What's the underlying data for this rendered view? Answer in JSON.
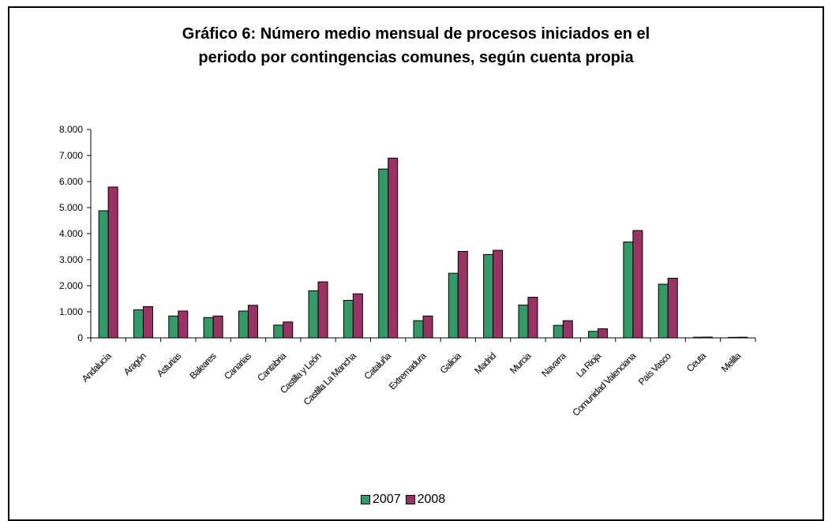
{
  "chart_data": {
    "type": "bar",
    "title_line1": "Gráfico 6: Número medio mensual de procesos iniciados en el",
    "title_line2": "periodo por contingencias comunes, según cuenta propia",
    "categories": [
      "Andalucía",
      "Aragón",
      "Asturias",
      "Baleares",
      "Canarias",
      "Cantabria",
      "Castilla y León",
      "Castilla La Mancha",
      "Cataluña",
      "Extremadura",
      "Galicia",
      "Madrid",
      "Murcia",
      "Navarra",
      "La Rioja",
      "Comunidad Valenciana",
      "País Vasco",
      "Ceuta",
      "Melilla"
    ],
    "series": [
      {
        "name": "2007",
        "color": "#339966",
        "values": [
          4880,
          1080,
          840,
          780,
          1030,
          490,
          1810,
          1440,
          6480,
          660,
          2480,
          3200,
          1260,
          480,
          250,
          3680,
          2060,
          25,
          20
        ]
      },
      {
        "name": "2008",
        "color": "#993366",
        "values": [
          5790,
          1200,
          1030,
          840,
          1250,
          610,
          2150,
          1690,
          6900,
          840,
          3320,
          3360,
          1560,
          660,
          350,
          4120,
          2290,
          30,
          25
        ]
      }
    ],
    "ylim": [
      0,
      8000
    ],
    "yticks": [
      0,
      1000,
      2000,
      3000,
      4000,
      5000,
      6000,
      7000,
      8000
    ],
    "ytick_labels": [
      "0",
      "1.000",
      "2.000",
      "3.000",
      "4.000",
      "5.000",
      "6.000",
      "7.000",
      "8.000"
    ],
    "legend_position": "bottom",
    "grid": false
  }
}
